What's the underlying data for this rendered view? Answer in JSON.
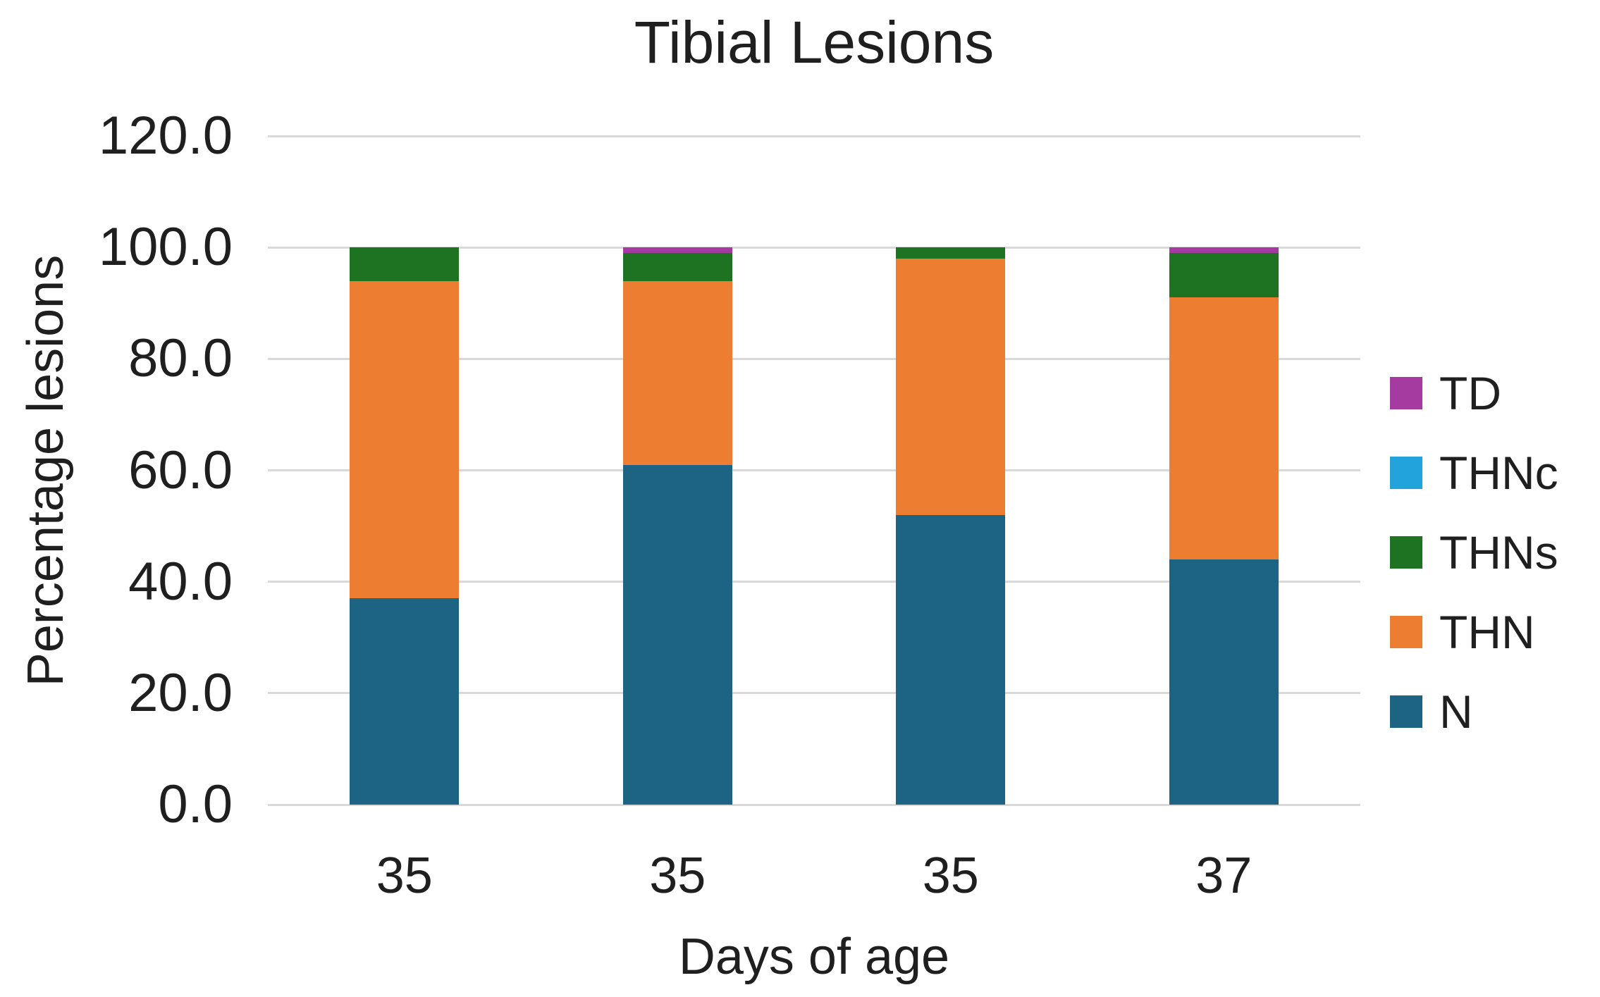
{
  "chart_data": {
    "type": "bar",
    "stacked": true,
    "title": "Tibial Lesions",
    "xlabel": "Days of age",
    "ylabel": "Percentage lesions",
    "categories": [
      "35",
      "35",
      "35",
      "37"
    ],
    "series": [
      {
        "name": "N",
        "color": "#1c6384",
        "values": [
          37,
          61,
          52,
          44
        ]
      },
      {
        "name": "THN",
        "color": "#ed7d31",
        "values": [
          57,
          33,
          46,
          47
        ]
      },
      {
        "name": "THNs",
        "color": "#1e7323",
        "values": [
          6,
          5,
          2,
          8
        ]
      },
      {
        "name": "THNc",
        "color": "#22a3db",
        "values": [
          0,
          0,
          0,
          0
        ]
      },
      {
        "name": "TD",
        "color": "#a53aa0",
        "values": [
          0,
          1,
          0,
          1
        ]
      }
    ],
    "ylim": [
      0,
      120
    ],
    "yticks": [
      {
        "value": 0,
        "label": "0.0"
      },
      {
        "value": 20,
        "label": "20.0"
      },
      {
        "value": 40,
        "label": "40.0"
      },
      {
        "value": 60,
        "label": "60.0"
      },
      {
        "value": 80,
        "label": "80.0"
      },
      {
        "value": 100,
        "label": "100.0"
      },
      {
        "value": 120,
        "label": "120.0"
      }
    ],
    "grid": true,
    "legend": {
      "position": "right",
      "entries": [
        "TD",
        "THNc",
        "THNs",
        "THN",
        "N"
      ]
    }
  },
  "colors": {
    "gridline": "#d9d9d9",
    "text": "#1f1f1f",
    "background": "#ffffff"
  }
}
